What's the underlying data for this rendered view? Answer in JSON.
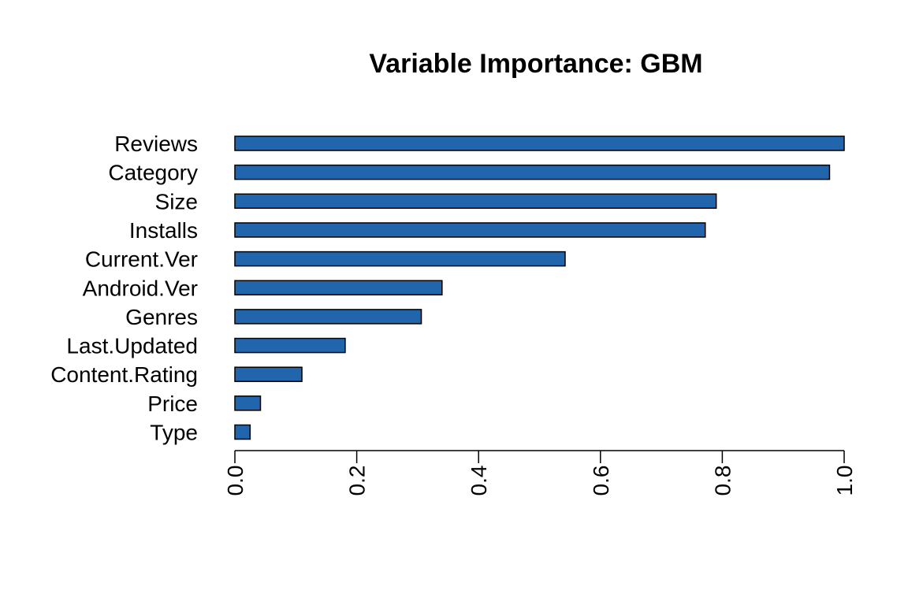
{
  "chart_data": {
    "type": "bar",
    "orientation": "horizontal",
    "title": "Variable Importance: GBM",
    "xlabel": "",
    "ylabel": "",
    "categories": [
      "Reviews",
      "Category",
      "Size",
      "Installs",
      "Current.Ver",
      "Android.Ver",
      "Genres",
      "Last.Updated",
      "Content.Rating",
      "Price",
      "Type"
    ],
    "values": [
      1.0,
      0.976,
      0.79,
      0.772,
      0.542,
      0.34,
      0.306,
      0.181,
      0.11,
      0.042,
      0.025
    ],
    "xlim": [
      0,
      1
    ],
    "ticks": [
      "0.0",
      "0.2",
      "0.4",
      "0.6",
      "0.8",
      "1.0"
    ],
    "tick_values": [
      0,
      0.2,
      0.4,
      0.6,
      0.8,
      1.0
    ],
    "bar_color": "#2166ac",
    "grid": false,
    "legend": "none"
  }
}
